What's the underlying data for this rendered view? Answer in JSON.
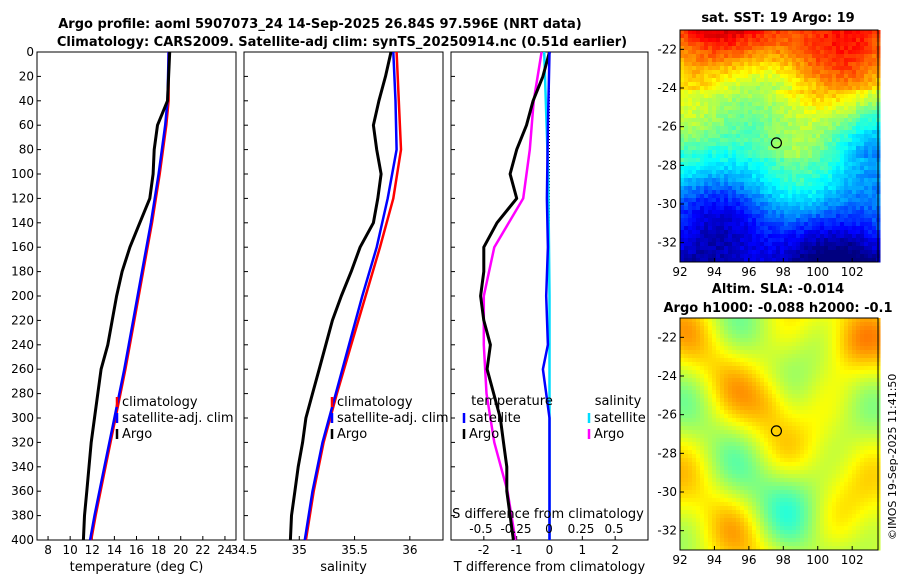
{
  "header": {
    "title_line1": "Argo profile: aoml 5907073_24 14-Sep-2025 26.84S 97.596E (NRT data)",
    "title_line2": "Climatology: CARS2009. Satellite-adj clim: synTS_20250914.nc (0.51d earlier)"
  },
  "footer": {
    "credit": "©IMOS 19-Sep-2025 11:41:50"
  },
  "colors": {
    "climatology": "#ff0000",
    "satellite": "#0000ff",
    "argo": "#000000",
    "sat_salinity": "#00dcff",
    "argo_salinity": "#ff00ff"
  },
  "chart_data": [
    {
      "id": "temperature",
      "type": "line",
      "xlabel": "temperature (deg C)",
      "ylabel": "",
      "xlim": [
        7,
        25
      ],
      "ylim": [
        400,
        0
      ],
      "xticks": [
        8,
        10,
        12,
        14,
        16,
        18,
        20,
        22,
        24
      ],
      "yticks": [
        0,
        20,
        40,
        60,
        80,
        100,
        120,
        140,
        160,
        180,
        200,
        220,
        240,
        260,
        280,
        300,
        320,
        340,
        360,
        380,
        400
      ],
      "legend": {
        "position": "bottom-right",
        "entries": [
          "climatology",
          "satellite-adj. clim",
          "Argo"
        ]
      },
      "series": [
        {
          "name": "climatology",
          "color": "#ff0000",
          "depth": [
            0,
            40,
            60,
            100,
            140,
            180,
            220,
            260,
            300,
            340,
            380,
            400
          ],
          "values": [
            18.9,
            18.9,
            18.7,
            18.1,
            17.4,
            16.6,
            15.8,
            15.0,
            14.1,
            13.2,
            12.3,
            11.9
          ]
        },
        {
          "name": "satellite-adj. clim",
          "color": "#0000ff",
          "depth": [
            0,
            40,
            60,
            100,
            140,
            180,
            220,
            260,
            300,
            340,
            380,
            400
          ],
          "values": [
            18.9,
            18.8,
            18.6,
            18.0,
            17.3,
            16.5,
            15.7,
            14.9,
            14.0,
            13.1,
            12.2,
            11.8
          ]
        },
        {
          "name": "Argo",
          "color": "#000000",
          "depth": [
            0,
            20,
            40,
            60,
            80,
            100,
            120,
            140,
            160,
            180,
            200,
            220,
            240,
            260,
            280,
            300,
            320,
            340,
            360,
            380,
            400
          ],
          "values": [
            19.0,
            18.9,
            18.8,
            17.9,
            17.6,
            17.5,
            17.2,
            16.3,
            15.4,
            14.7,
            14.2,
            13.8,
            13.4,
            12.8,
            12.5,
            12.2,
            11.9,
            11.7,
            11.5,
            11.3,
            11.2
          ]
        }
      ]
    },
    {
      "id": "salinity",
      "type": "line",
      "xlabel": "salinity",
      "ylabel": "",
      "xlim": [
        34.5,
        36.3
      ],
      "ylim": [
        400,
        0
      ],
      "xticks": [
        34.5,
        35,
        35.5,
        36
      ],
      "xticklabels": [
        "34.5",
        "35",
        "35.5",
        "36"
      ],
      "legend": {
        "position": "bottom-right",
        "entries": [
          "climatology",
          "satellite-adj. clim",
          "Argo"
        ]
      },
      "series": [
        {
          "name": "climatology",
          "color": "#ff0000",
          "depth": [
            0,
            40,
            80,
            120,
            160,
            200,
            240,
            280,
            320,
            360,
            400
          ],
          "values": [
            35.88,
            35.9,
            35.92,
            35.85,
            35.73,
            35.6,
            35.47,
            35.34,
            35.22,
            35.13,
            35.06
          ]
        },
        {
          "name": "satellite-adj. clim",
          "color": "#0000ff",
          "depth": [
            0,
            40,
            80,
            120,
            160,
            200,
            240,
            280,
            320,
            360,
            400
          ],
          "values": [
            35.85,
            35.87,
            35.88,
            35.8,
            35.7,
            35.57,
            35.45,
            35.33,
            35.21,
            35.12,
            35.05
          ]
        },
        {
          "name": "Argo",
          "color": "#000000",
          "depth": [
            0,
            20,
            40,
            60,
            80,
            100,
            120,
            140,
            160,
            180,
            200,
            220,
            240,
            260,
            280,
            300,
            320,
            340,
            360,
            380,
            400
          ],
          "values": [
            35.83,
            35.78,
            35.72,
            35.67,
            35.7,
            35.74,
            35.71,
            35.67,
            35.55,
            35.47,
            35.38,
            35.3,
            35.24,
            35.18,
            35.12,
            35.06,
            35.03,
            34.99,
            34.96,
            34.93,
            34.92
          ]
        }
      ]
    },
    {
      "id": "differences",
      "type": "line",
      "xlabel": "T difference from climatology",
      "top_xlabel": "S difference from climatology",
      "xlim": [
        -3,
        3
      ],
      "ylim": [
        400,
        0
      ],
      "xticks": [
        -2,
        -1,
        0,
        1,
        2
      ],
      "xticklabels": [
        "-2",
        "-1",
        "0",
        "1",
        "2"
      ],
      "s_xticklabels": [
        "-0.5",
        "-0.25",
        "0",
        "0.25",
        "0.5"
      ],
      "legend": {
        "position": "bottom",
        "groups": [
          "temperature",
          "salinity"
        ],
        "entries": [
          "satellite",
          "Argo",
          "satellite",
          "Argo"
        ]
      },
      "series": [
        {
          "name": "temperature satellite",
          "color": "#0000ff",
          "depth": [
            0,
            60,
            120,
            160,
            200,
            240,
            260,
            280,
            300,
            400
          ],
          "values": [
            0.0,
            -0.05,
            -0.08,
            -0.05,
            -0.1,
            -0.05,
            -0.2,
            -0.1,
            0.0,
            0.0
          ]
        },
        {
          "name": "temperature Argo",
          "color": "#000000",
          "depth": [
            0,
            20,
            40,
            60,
            80,
            100,
            120,
            140,
            160,
            180,
            200,
            220,
            240,
            260,
            280,
            300,
            320,
            340,
            360,
            380,
            400
          ],
          "values": [
            0.0,
            -0.2,
            -0.5,
            -0.7,
            -1.0,
            -1.2,
            -1.0,
            -1.6,
            -2.0,
            -2.0,
            -2.1,
            -2.0,
            -1.8,
            -1.9,
            -1.7,
            -1.5,
            -1.4,
            -1.3,
            -1.3,
            -1.2,
            -1.1
          ]
        },
        {
          "name": "salinity satellite",
          "color": "#00dcff",
          "depth": [
            0,
            100,
            200,
            300,
            400
          ],
          "values": [
            -0.04,
            -0.01,
            0.0,
            0.0,
            0.0
          ]
        },
        {
          "name": "salinity Argo",
          "color": "#ff00ff",
          "depth": [
            0,
            40,
            80,
            120,
            160,
            200,
            240,
            280,
            320,
            360,
            400
          ],
          "values": [
            -0.06,
            -0.12,
            -0.15,
            -0.2,
            -0.42,
            -0.5,
            -0.5,
            -0.48,
            -0.42,
            -0.32,
            -0.26
          ]
        }
      ]
    },
    {
      "id": "sst_map",
      "type": "heatmap",
      "title": "sat. SST: 19 Argo: 19",
      "xlim": [
        92,
        103.5
      ],
      "ylim": [
        -33,
        -21
      ],
      "xticks": [
        92,
        94,
        96,
        98,
        100,
        102
      ],
      "yticks": [
        -22,
        -24,
        -26,
        -28,
        -30,
        -32
      ],
      "marker": {
        "lon": 97.6,
        "lat": -26.84
      }
    },
    {
      "id": "sla_map",
      "type": "heatmap",
      "title_line1": "Altim. SLA: -0.014",
      "title_line2": "Argo h1000: -0.088 h2000: -0.1",
      "xlim": [
        92,
        103.5
      ],
      "ylim": [
        -33,
        -21
      ],
      "xticks": [
        92,
        94,
        96,
        98,
        100,
        102
      ],
      "yticks": [
        -22,
        -24,
        -26,
        -28,
        -30,
        -32
      ],
      "marker": {
        "lon": 97.6,
        "lat": -26.84
      }
    }
  ]
}
